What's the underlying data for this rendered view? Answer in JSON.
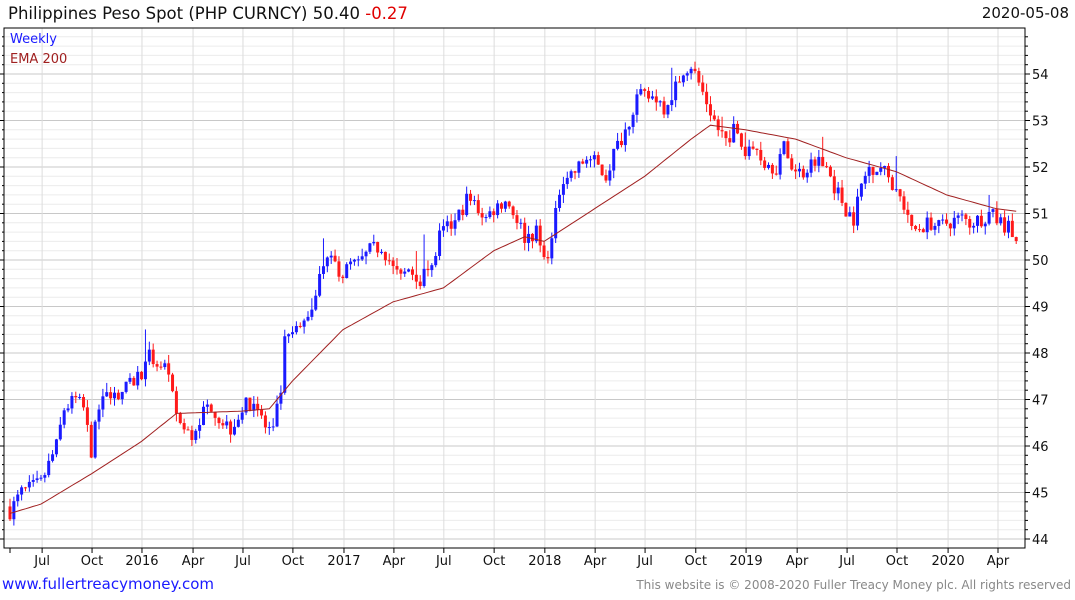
{
  "header": {
    "title": "Philippines Peso Spot (PHP CURNCY) 50.40",
    "change": "-0.27",
    "date": "2020-05-08"
  },
  "legend": {
    "weekly": "Weekly",
    "ema": "EMA 200"
  },
  "footer": {
    "site": "www.fullertreacymoney.com",
    "copyright": "This website is © 2008-2020 Fuller Treacy Money plc. All rights reserved"
  },
  "colors": {
    "up": "#1a1aff",
    "down": "#ff1a1a",
    "ema": "#a02020",
    "grid": "#dddddd"
  },
  "chart_data": {
    "type": "candlestick",
    "title": "Philippines Peso Spot (PHP CURNCY)",
    "x_unit": "weeks since 2015-05-08",
    "xlim": [
      -1.5,
      262
    ],
    "ylim": [
      43.8,
      55.0
    ],
    "y_ticks": [
      44,
      45,
      46,
      47,
      48,
      49,
      50,
      51,
      52,
      53,
      54
    ],
    "y_axis_side": "right",
    "grid": true,
    "x_ticks": [
      {
        "label": "Jul",
        "week": 8.3
      },
      {
        "label": "Oct",
        "week": 21.2
      },
      {
        "label": "2016",
        "week": 34.1
      },
      {
        "label": "Apr",
        "week": 47.3
      },
      {
        "label": "Jul",
        "week": 60.2
      },
      {
        "label": "Oct",
        "week": 73.1
      },
      {
        "label": "2017",
        "week": 86.3
      },
      {
        "label": "Apr",
        "week": 99.2
      },
      {
        "label": "Jul",
        "week": 112.1
      },
      {
        "label": "Oct",
        "week": 125.1
      },
      {
        "label": "2018",
        "week": 138.2
      },
      {
        "label": "Apr",
        "week": 151.2
      },
      {
        "label": "Jul",
        "week": 164.1
      },
      {
        "label": "Oct",
        "week": 177.2
      },
      {
        "label": "2019",
        "week": 190.2
      },
      {
        "label": "Apr",
        "week": 203.4
      },
      {
        "label": "Jul",
        "week": 216.3
      },
      {
        "label": "Oct",
        "week": 229.2
      },
      {
        "label": "2020",
        "week": 242.4
      },
      {
        "label": "Apr",
        "week": 255.3
      }
    ],
    "weekly_close_anchors": [
      [
        0,
        44.6
      ],
      [
        3,
        45.0
      ],
      [
        8,
        45.2
      ],
      [
        12,
        46.0
      ],
      [
        14,
        46.8
      ],
      [
        17,
        47.0
      ],
      [
        19,
        46.8
      ],
      [
        21,
        45.9
      ],
      [
        23,
        46.8
      ],
      [
        26,
        47.2
      ],
      [
        28,
        47.1
      ],
      [
        31,
        47.3
      ],
      [
        34,
        47.6
      ],
      [
        36,
        47.9
      ],
      [
        38,
        47.8
      ],
      [
        40,
        47.7
      ],
      [
        43,
        46.7
      ],
      [
        45,
        46.3
      ],
      [
        47,
        46.2
      ],
      [
        49,
        46.6
      ],
      [
        52,
        46.9
      ],
      [
        54,
        46.6
      ],
      [
        57,
        46.4
      ],
      [
        60,
        46.8
      ],
      [
        63,
        47.0
      ],
      [
        66,
        46.4
      ],
      [
        68,
        46.3
      ],
      [
        70,
        47.2
      ],
      [
        71,
        48.2
      ],
      [
        73,
        48.4
      ],
      [
        75,
        48.5
      ],
      [
        78,
        49.0
      ],
      [
        80,
        49.8
      ],
      [
        81,
        50.0
      ],
      [
        84,
        49.9
      ],
      [
        86,
        49.7
      ],
      [
        88,
        49.9
      ],
      [
        90,
        49.9
      ],
      [
        93,
        50.2
      ],
      [
        96,
        50.3
      ],
      [
        98,
        50.0
      ],
      [
        99,
        49.8
      ],
      [
        101,
        49.6
      ],
      [
        103,
        49.8
      ],
      [
        106,
        49.6
      ],
      [
        109,
        49.8
      ],
      [
        111,
        50.5
      ],
      [
        112,
        50.6
      ],
      [
        115,
        50.8
      ],
      [
        118,
        51.3
      ],
      [
        120,
        51.2
      ],
      [
        123,
        50.9
      ],
      [
        125,
        51.1
      ],
      [
        128,
        51.3
      ],
      [
        131,
        50.9
      ],
      [
        133,
        50.5
      ],
      [
        136,
        50.6
      ],
      [
        138,
        50.0
      ],
      [
        140,
        50.4
      ],
      [
        142,
        51.5
      ],
      [
        143,
        51.8
      ],
      [
        146,
        51.9
      ],
      [
        149,
        52.2
      ],
      [
        151,
        52.1
      ],
      [
        154,
        51.8
      ],
      [
        156,
        52.3
      ],
      [
        159,
        52.8
      ],
      [
        162,
        53.5
      ],
      [
        164,
        53.5
      ],
      [
        167,
        53.5
      ],
      [
        169,
        53.3
      ],
      [
        172,
        53.7
      ],
      [
        174,
        54.1
      ],
      [
        176,
        54.2
      ],
      [
        178,
        53.8
      ],
      [
        181,
        53.2
      ],
      [
        183,
        52.8
      ],
      [
        185,
        52.6
      ],
      [
        187,
        52.8
      ],
      [
        190,
        52.3
      ],
      [
        193,
        52.4
      ],
      [
        195,
        52.1
      ],
      [
        198,
        52.0
      ],
      [
        200,
        52.4
      ],
      [
        203,
        51.9
      ],
      [
        205,
        51.9
      ],
      [
        208,
        52.2
      ],
      [
        211,
        52.0
      ],
      [
        213,
        51.6
      ],
      [
        216,
        51.1
      ],
      [
        218,
        50.9
      ],
      [
        220,
        51.6
      ],
      [
        222,
        52.0
      ],
      [
        225,
        52.0
      ],
      [
        227,
        51.8
      ],
      [
        229,
        51.5
      ],
      [
        232,
        51.0
      ],
      [
        233,
        50.6
      ],
      [
        235,
        50.7
      ],
      [
        238,
        50.8
      ],
      [
        240,
        50.7
      ],
      [
        242,
        50.8
      ],
      [
        246,
        50.9
      ],
      [
        248,
        50.8
      ],
      [
        251,
        50.9
      ],
      [
        253,
        51.0
      ],
      [
        256,
        50.8
      ],
      [
        258,
        50.7
      ],
      [
        260,
        50.4
      ]
    ],
    "ema200_anchors": [
      [
        0,
        44.55
      ],
      [
        8,
        44.75
      ],
      [
        21,
        45.4
      ],
      [
        34,
        46.1
      ],
      [
        43,
        46.7
      ],
      [
        60,
        46.75
      ],
      [
        67,
        46.8
      ],
      [
        73,
        47.4
      ],
      [
        86,
        48.5
      ],
      [
        99,
        49.1
      ],
      [
        112,
        49.4
      ],
      [
        125,
        50.2
      ],
      [
        133,
        50.5
      ],
      [
        138,
        50.4
      ],
      [
        151,
        51.1
      ],
      [
        164,
        51.8
      ],
      [
        176,
        52.6
      ],
      [
        181,
        52.9
      ],
      [
        190,
        52.8
      ],
      [
        203,
        52.6
      ],
      [
        216,
        52.2
      ],
      [
        229,
        51.9
      ],
      [
        242,
        51.4
      ],
      [
        255,
        51.1
      ],
      [
        260,
        51.05
      ]
    ]
  }
}
